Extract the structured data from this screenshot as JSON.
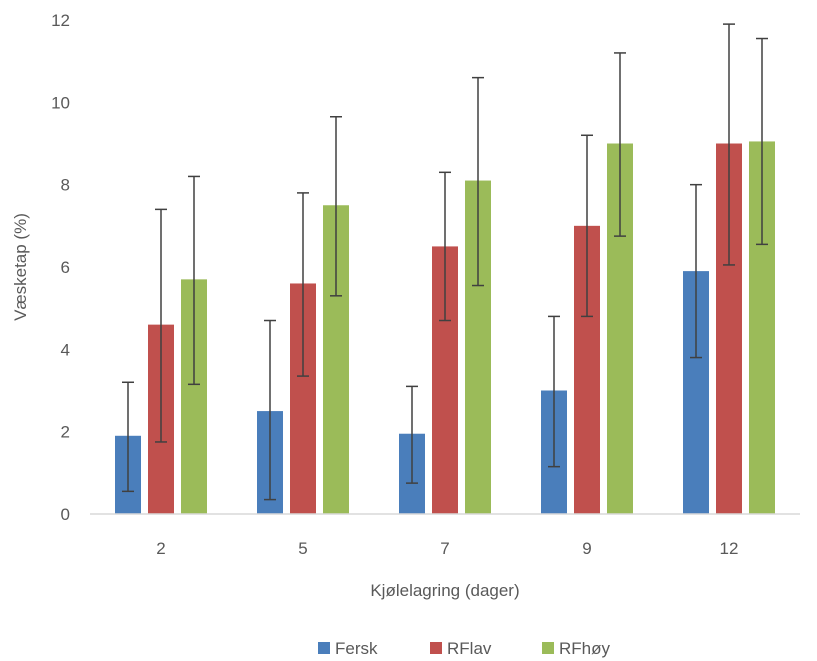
{
  "chart_data": {
    "type": "bar",
    "xlabel": "Kjølelagring (dager)",
    "ylabel": "Væsketap (%)",
    "ylim": [
      0,
      12
    ],
    "yticks": [
      "0",
      "2",
      "4",
      "6",
      "8",
      "10",
      "12"
    ],
    "categories": [
      "2",
      "5",
      "7",
      "9",
      "12"
    ],
    "grid": false,
    "legend_position": "bottom",
    "series": [
      {
        "name": "Fersk",
        "color": "#4a7ebb",
        "values": [
          1.9,
          2.5,
          1.95,
          3.0,
          5.9
        ],
        "error_low": [
          0.55,
          0.35,
          0.75,
          1.15,
          3.8
        ],
        "error_high": [
          3.2,
          4.7,
          3.1,
          4.8,
          8.0
        ]
      },
      {
        "name": "RFlav",
        "color": "#c0504d",
        "values": [
          4.6,
          5.6,
          6.5,
          7.0,
          9.0
        ],
        "error_low": [
          1.75,
          3.35,
          4.7,
          4.8,
          6.05
        ],
        "error_high": [
          7.4,
          7.8,
          8.3,
          9.2,
          11.9
        ]
      },
      {
        "name": "RFhøy",
        "color": "#9bbb59",
        "values": [
          5.7,
          7.5,
          8.1,
          9.0,
          9.05
        ],
        "error_low": [
          3.15,
          5.3,
          5.55,
          6.75,
          6.55
        ],
        "error_high": [
          8.2,
          9.65,
          10.6,
          11.2,
          11.55
        ]
      }
    ]
  }
}
